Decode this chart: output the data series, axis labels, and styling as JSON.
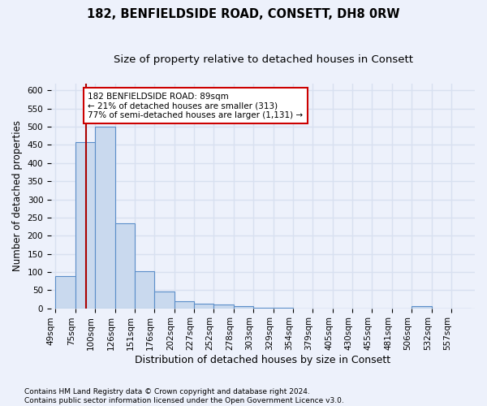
{
  "title1": "182, BENFIELDSIDE ROAD, CONSETT, DH8 0RW",
  "title2": "Size of property relative to detached houses in Consett",
  "xlabel": "Distribution of detached houses by size in Consett",
  "ylabel": "Number of detached properties",
  "bins": [
    49,
    75,
    100,
    126,
    151,
    176,
    202,
    227,
    252,
    278,
    303,
    329,
    354,
    379,
    405,
    430,
    455,
    481,
    506,
    532,
    557
  ],
  "bar_heights": [
    89,
    457,
    500,
    234,
    103,
    47,
    20,
    12,
    10,
    5,
    2,
    1,
    0,
    0,
    0,
    0,
    0,
    0,
    5,
    0,
    0
  ],
  "bar_color": "#c9d9ee",
  "bar_edge_color": "#5b8ec9",
  "property_size": 89,
  "property_line_color": "#aa0000",
  "annotation_line1": "182 BENFIELDSIDE ROAD: 89sqm",
  "annotation_line2": "← 21% of detached houses are smaller (313)",
  "annotation_line3": "77% of semi-detached houses are larger (1,131) →",
  "annotation_box_color": "#ffffff",
  "annotation_box_edge_color": "#cc0000",
  "ylim": [
    0,
    620
  ],
  "yticks": [
    0,
    50,
    100,
    150,
    200,
    250,
    300,
    350,
    400,
    450,
    500,
    550,
    600
  ],
  "footer1": "Contains HM Land Registry data © Crown copyright and database right 2024.",
  "footer2": "Contains public sector information licensed under the Open Government Licence v3.0.",
  "background_color": "#edf1fb",
  "grid_color": "#d8e0f0",
  "title1_fontsize": 10.5,
  "title2_fontsize": 9.5,
  "xlabel_fontsize": 9,
  "ylabel_fontsize": 8.5,
  "tick_fontsize": 7.5,
  "annotation_fontsize": 7.5,
  "footer_fontsize": 6.5
}
